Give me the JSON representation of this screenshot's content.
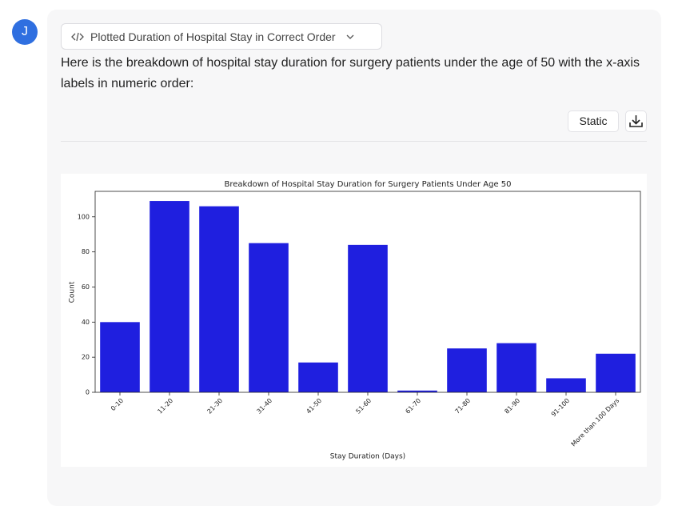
{
  "avatar": {
    "initial": "J"
  },
  "message": {
    "tool_button": "Plotted Duration of Hospital Stay in Correct Order",
    "text": "Here is the breakdown of hospital stay duration for surgery patients under the age of 50 with the x-axis labels in numeric order:",
    "static_button": "Static"
  },
  "chart_data": {
    "type": "bar",
    "title": "Breakdown of Hospital Stay Duration for Surgery Patients Under Age 50",
    "xlabel": "Stay Duration (Days)",
    "ylabel": "Count",
    "categories": [
      "0-10",
      "11-20",
      "21-30",
      "31-40",
      "41-50",
      "51-60",
      "61-70",
      "71-80",
      "81-90",
      "91-100",
      "More than 100 Days"
    ],
    "values": [
      40,
      109,
      106,
      85,
      17,
      84,
      1,
      25,
      28,
      8,
      22
    ],
    "color": "#1f1fdf",
    "ylim": [
      0,
      114.5
    ],
    "yticks": [
      0,
      20,
      40,
      60,
      80,
      100
    ]
  }
}
